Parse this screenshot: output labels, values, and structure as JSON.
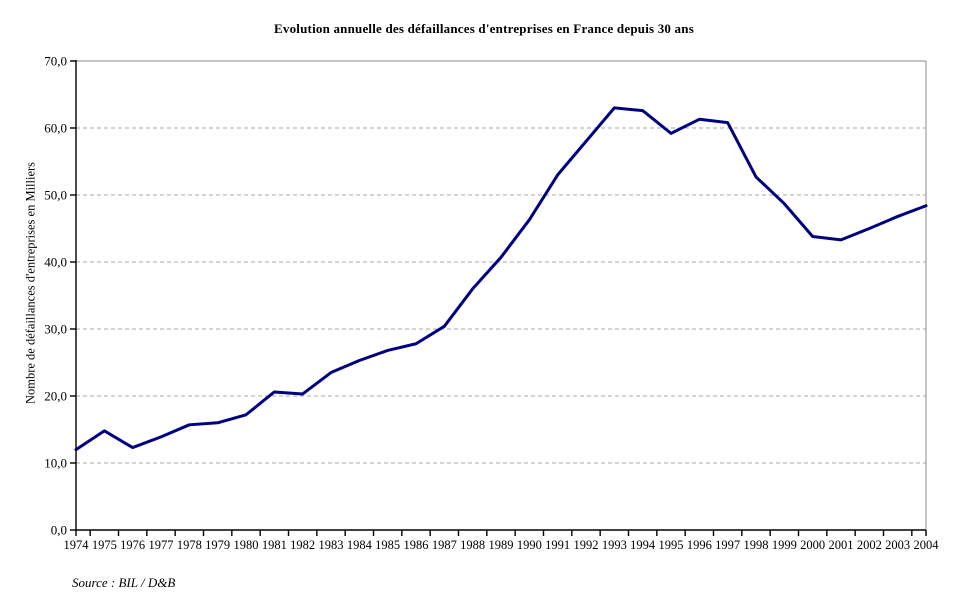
{
  "chart_data": {
    "type": "line",
    "title": "Evolution annuelle des défaillances d'entreprises en France depuis 30 ans",
    "ylabel": "Nombre de défaillances d'entreprises en Milliers",
    "xlabel": "",
    "source": "Source : BIL / D&B",
    "categories": [
      "1974",
      "1975",
      "1976",
      "1977",
      "1978",
      "1979",
      "1980",
      "1981",
      "1982",
      "1983",
      "1984",
      "1985",
      "1986",
      "1987",
      "1988",
      "1989",
      "1990",
      "1991",
      "1992",
      "1993",
      "1994",
      "1995",
      "1996",
      "1997",
      "1998",
      "1999",
      "2000",
      "2001",
      "2002",
      "2003",
      "2004"
    ],
    "series": [
      {
        "name": "Défaillances d'entreprises",
        "values": [
          12.0,
          14.8,
          12.3,
          13.9,
          15.7,
          16.0,
          17.2,
          20.6,
          20.3,
          23.5,
          25.3,
          26.8,
          27.8,
          30.4,
          36.0,
          40.7,
          46.3,
          53.0,
          58.0,
          63.0,
          62.6,
          59.2,
          61.3,
          60.8,
          52.7,
          48.7,
          43.8,
          43.3,
          45.0,
          46.8,
          48.4
        ]
      }
    ],
    "ylim": [
      0,
      70
    ],
    "ytick_step": 10,
    "ytick_labels": [
      "0,0",
      "10,0",
      "20,0",
      "30,0",
      "40,0",
      "50,0",
      "60,0",
      "70,0"
    ],
    "grid": "horizontal-dashed",
    "legend": "none",
    "line_color": "#000080",
    "grid_color": "#a9a9a9",
    "border_color": "#8c8c8c",
    "axis_color": "#000000"
  }
}
